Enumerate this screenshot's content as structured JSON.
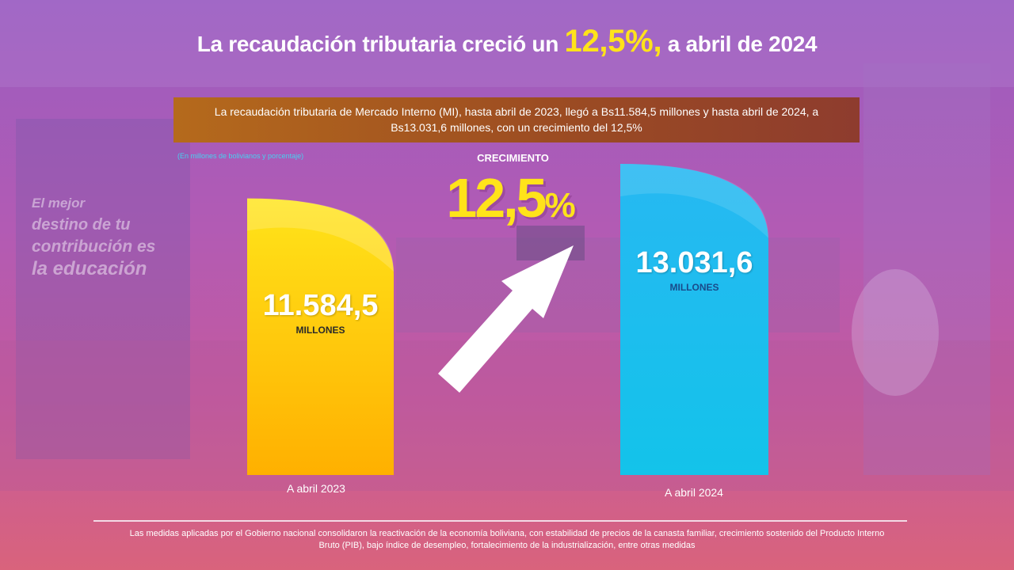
{
  "title": {
    "prefix": "La recaudación tributaria creció un",
    "highlight": "12,5%,",
    "suffix": "a abril de 2024"
  },
  "banner": {
    "text": "La recaudación tributaria de Mercado Interno (MI), hasta abril de 2023, llegó a Bs11.584,5 millones y hasta abril de 2024, a Bs13.031,6 millones, con un crecimiento del 12,5%"
  },
  "units_note": "(En millones de bolivianos y porcentaje)",
  "growth": {
    "label": "CRECIMIENTO",
    "number": "12,5",
    "percent_sign": "%"
  },
  "background_sign": {
    "line1": "El mejor",
    "line2": "destino de tu",
    "line3": "contribución es",
    "line4": "la educación"
  },
  "chart_data": {
    "type": "bar",
    "categories": [
      "A abril 2023",
      "A abril 2024"
    ],
    "values": [
      11584.5,
      13031.6
    ],
    "value_labels": [
      "11.584,5",
      "13.031,6"
    ],
    "unit_label": "MILLONES",
    "growth_percent": 12.5,
    "colors": {
      "bar_2023_top": "#ffe41a",
      "bar_2023_bottom": "#ffb000",
      "bar_2024_top": "#27b8f2",
      "bar_2024_bottom": "#13c3ea",
      "unit_2023": "#2a2a2a",
      "unit_2024": "#1a4a8a",
      "arrow": "#ffffff",
      "highlight": "#ffe31a"
    }
  },
  "footer": {
    "text": "Las medidas aplicadas por el Gobierno nacional consolidaron la reactivación de la economía boliviana, con estabilidad de precios de la canasta familiar, crecimiento sostenido del Producto Interno Bruto (PIB), bajo índice de desempleo, fortalecimiento de la industrialización, entre otras medidas"
  }
}
